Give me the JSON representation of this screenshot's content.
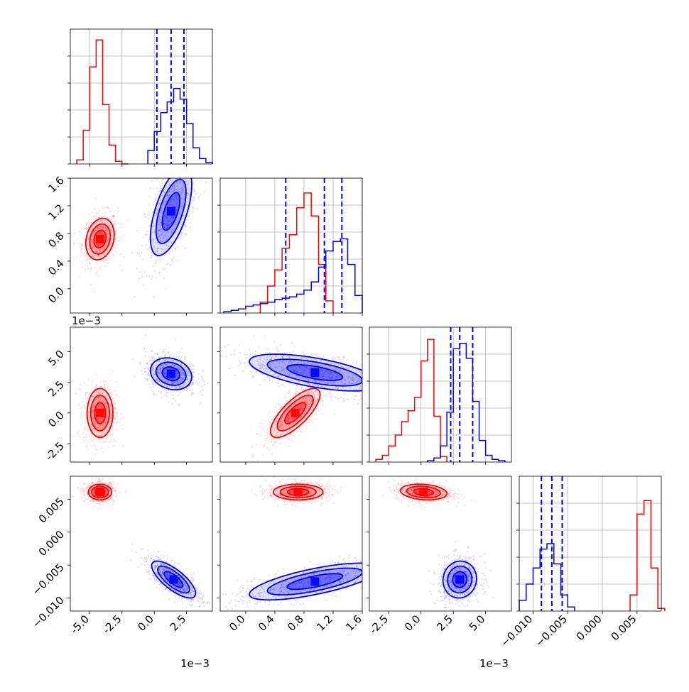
{
  "colors": {
    "red": "#ff0000",
    "blue": "#0000ff",
    "grid": "#b0b0b0"
  },
  "chart_data": {
    "type": "corner",
    "title": "",
    "panels": [
      {
        "id": "hist-p1",
        "type": "histogram",
        "xticks": [
          "-5.0",
          "-2.5",
          "0.0",
          "2.5"
        ],
        "xtick_values": [
          -5.0,
          -2.5,
          0.0,
          2.5
        ],
        "xlim": [
          -6.5,
          4.5
        ],
        "x_offset_label": "",
        "series": [
          {
            "color": "red",
            "bin_edges": [
              -6.0,
              -5.5,
              -5.0,
              -4.5,
              -4.0,
              -3.5,
              -3.0,
              -2.5,
              -2.0
            ],
            "counts": [
              0.03,
              0.25,
              0.72,
              0.92,
              0.44,
              0.14,
              0.02,
              0.0
            ]
          },
          {
            "color": "blue",
            "bin_edges": [
              -0.5,
              0.0,
              0.5,
              1.0,
              1.5,
              2.0,
              2.5,
              3.0,
              3.5,
              4.0,
              4.5
            ],
            "counts": [
              0.1,
              0.24,
              0.38,
              0.46,
              0.56,
              0.48,
              0.3,
              0.12,
              0.04,
              0.01
            ]
          }
        ],
        "quantile_lines": [
          0.2,
          1.3,
          2.3
        ]
      },
      {
        "id": "hist-p2",
        "type": "histogram",
        "xticks": [
          "0.0",
          "0.4",
          "0.8",
          "1.2",
          "1.6"
        ],
        "xtick_values": [
          0.0,
          0.4,
          0.8,
          1.2,
          1.6
        ],
        "xlim": [
          -0.35,
          1.6
        ],
        "x_offset_label": "",
        "series": [
          {
            "color": "red",
            "bin_edges": [
              0.2,
              0.3,
              0.4,
              0.5,
              0.6,
              0.7,
              0.8,
              0.9,
              1.0,
              1.1,
              1.2
            ],
            "counts": [
              0.08,
              0.2,
              0.32,
              0.48,
              0.58,
              0.78,
              0.89,
              0.72,
              0.36,
              0.09
            ]
          },
          {
            "color": "blue",
            "bin_edges": [
              -0.3,
              -0.2,
              -0.1,
              0.0,
              0.1,
              0.2,
              0.3,
              0.4,
              0.5,
              0.6,
              0.7,
              0.8,
              0.9,
              1.0,
              1.1,
              1.2,
              1.3,
              1.4,
              1.5,
              1.6
            ],
            "counts": [
              0.01,
              0.02,
              0.03,
              0.05,
              0.06,
              0.07,
              0.08,
              0.1,
              0.11,
              0.12,
              0.14,
              0.17,
              0.23,
              0.34,
              0.46,
              0.53,
              0.55,
              0.36,
              0.13
            ]
          }
        ],
        "quantile_lines": [
          0.55,
          1.08,
          1.32
        ]
      },
      {
        "id": "hist-p3",
        "type": "histogram",
        "xticks": [
          "-2.5",
          "0.0",
          "2.5",
          "5.0"
        ],
        "xtick_values": [
          -2.5,
          0.0,
          2.5,
          5.0
        ],
        "xlim": [
          -4.0,
          7.0
        ],
        "x_offset_label": "1e−3",
        "series": [
          {
            "color": "red",
            "bin_edges": [
              -3.5,
              -3.0,
              -2.5,
              -2.0,
              -1.5,
              -1.0,
              -0.5,
              0.0,
              0.5,
              1.0,
              1.5,
              2.0
            ],
            "counts": [
              0.02,
              0.05,
              0.12,
              0.2,
              0.3,
              0.38,
              0.48,
              0.75,
              0.91,
              0.34,
              0.04
            ]
          },
          {
            "color": "blue",
            "bin_edges": [
              0.5,
              1.0,
              1.5,
              2.0,
              2.5,
              3.0,
              3.5,
              4.0,
              4.5,
              5.0,
              5.5,
              6.0,
              6.5
            ],
            "counts": [
              0.01,
              0.03,
              0.12,
              0.37,
              0.84,
              0.88,
              0.77,
              0.45,
              0.16,
              0.05,
              0.02,
              0.01
            ]
          }
        ],
        "quantile_lines": [
          2.3,
          3.0,
          4.0
        ]
      },
      {
        "id": "hist-p4",
        "type": "histogram",
        "xticks": [
          "−0.010",
          "−0.005",
          "0.000",
          "0.005"
        ],
        "xtick_values": [
          -0.01,
          -0.005,
          0.0,
          0.005
        ],
        "xlim": [
          -0.012,
          0.0085
        ],
        "x_offset_label": "",
        "series": [
          {
            "color": "red",
            "bin_edges": [
              0.004,
              0.005,
              0.006,
              0.007,
              0.008,
              0.009
            ],
            "counts": [
              0.12,
              0.72,
              0.82,
              0.32,
              0.02
            ]
          },
          {
            "color": "blue",
            "bin_edges": [
              -0.012,
              -0.011,
              -0.01,
              -0.009,
              -0.008,
              -0.007,
              -0.006,
              -0.005,
              -0.004
            ],
            "counts": [
              0.08,
              0.2,
              0.32,
              0.46,
              0.5,
              0.35,
              0.12,
              0.03
            ]
          }
        ],
        "quantile_lines": [
          -0.0088,
          -0.0073,
          -0.0058
        ]
      },
      {
        "id": "scatter-p1-p2",
        "type": "2d-density",
        "xpar": 1,
        "ypar": 2,
        "yticks": [
          "0.0",
          "0.4",
          "0.8",
          "1.2",
          "1.6"
        ],
        "ytick_values": [
          0.0,
          0.4,
          0.8,
          1.2,
          1.6
        ],
        "ylim": [
          -0.35,
          1.6
        ],
        "y_offset_label": "",
        "clusters": [
          {
            "color": "red",
            "center": [
              -4.2,
              0.72
            ],
            "spread": [
              0.55,
              0.15
            ],
            "corr": 0.2
          },
          {
            "color": "blue",
            "center": [
              1.3,
              1.12
            ],
            "spread": [
              0.8,
              0.32
            ],
            "corr": 0.6
          }
        ]
      },
      {
        "id": "scatter-p1-p3",
        "type": "2d-density",
        "xpar": 1,
        "ypar": 3,
        "yticks": [
          "-2.5",
          "0.0",
          "2.5",
          "5.0"
        ],
        "ytick_values": [
          -2.5,
          0.0,
          2.5,
          5.0
        ],
        "ylim": [
          -4.0,
          7.0
        ],
        "y_offset_label": "1e−3",
        "clusters": [
          {
            "color": "red",
            "center": [
              -4.2,
              0.0
            ],
            "spread": [
              0.5,
              1.0
            ],
            "corr": 0.0
          },
          {
            "color": "blue",
            "center": [
              1.3,
              3.2
            ],
            "spread": [
              0.8,
              0.65
            ],
            "corr": -0.2
          }
        ]
      },
      {
        "id": "scatter-p2-p3",
        "type": "2d-density",
        "xpar": 2,
        "ypar": 3,
        "yticks": [],
        "ytick_values": [],
        "ylim": [
          -4.0,
          7.0
        ],
        "clusters": [
          {
            "color": "red",
            "center": [
              0.68,
              0.0
            ],
            "spread": [
              0.17,
              1.0
            ],
            "corr": 0.75
          },
          {
            "color": "blue",
            "center": [
              0.95,
              3.3
            ],
            "spread": [
              0.45,
              0.75
            ],
            "corr": -0.6
          }
        ]
      },
      {
        "id": "scatter-p1-p4",
        "type": "2d-density",
        "xpar": 1,
        "ypar": 4,
        "yticks": [
          "−0.010",
          "−0.005",
          "0.000",
          "0.005"
        ],
        "ytick_values": [
          -0.01,
          -0.005,
          0.0,
          0.005
        ],
        "ylim": [
          -0.012,
          0.0085
        ],
        "y_offset_label": "",
        "clusters": [
          {
            "color": "red",
            "center": [
              -4.2,
              0.0061
            ],
            "spread": [
              0.45,
              0.0006
            ],
            "corr": 0.0
          },
          {
            "color": "blue",
            "center": [
              1.5,
              -0.0072
            ],
            "spread": [
              0.85,
              0.0014
            ],
            "corr": -0.75
          }
        ]
      },
      {
        "id": "scatter-p2-p4",
        "type": "2d-density",
        "xpar": 2,
        "ypar": 4,
        "yticks": [],
        "ytick_values": [],
        "ylim": [
          -0.012,
          0.0085
        ],
        "clusters": [
          {
            "color": "red",
            "center": [
              0.72,
              0.0061
            ],
            "spread": [
              0.17,
              0.0006
            ],
            "corr": 0.0
          },
          {
            "color": "blue",
            "center": [
              0.95,
              -0.0075
            ],
            "spread": [
              0.45,
              0.0014
            ],
            "corr": 0.7
          }
        ]
      },
      {
        "id": "scatter-p3-p4",
        "type": "2d-density",
        "xpar": 3,
        "ypar": 4,
        "yticks": [],
        "ytick_values": [],
        "ylim": [
          -0.012,
          0.0085
        ],
        "clusters": [
          {
            "color": "red",
            "center": [
              0.2,
              0.0061
            ],
            "spread": [
              0.9,
              0.0006
            ],
            "corr": -0.2
          },
          {
            "color": "blue",
            "center": [
              3.0,
              -0.0072
            ],
            "spread": [
              0.65,
              0.0014
            ],
            "corr": 0.05
          }
        ]
      }
    ]
  }
}
